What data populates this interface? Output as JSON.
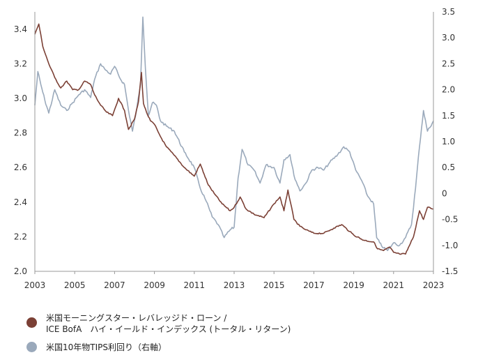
{
  "chart_data": {
    "type": "line",
    "title": "",
    "xlabel": "",
    "ylabel": "",
    "xlim": [
      2003,
      2023
    ],
    "ylim_left": [
      2.0,
      3.5
    ],
    "ylim_right": [
      -1.5,
      3.5
    ],
    "x_ticks": [
      "2003",
      "2005",
      "2007",
      "2009",
      "2011",
      "2013",
      "2015",
      "2017",
      "2019",
      "2021",
      "2023"
    ],
    "y_left_ticks": [
      "2.0",
      "2.2",
      "2.4",
      "2.6",
      "2.8",
      "3.0",
      "3.2",
      "3.4"
    ],
    "y_right_ticks": [
      "-1.5",
      "-1.0",
      "-0.5",
      "0",
      "0.5",
      "1.0",
      "1.5",
      "2.0",
      "2.5",
      "3.0",
      "3.5"
    ],
    "grid": false,
    "legend_position": "bottom-left",
    "series": [
      {
        "name": "米国モーニングスター・レバレッジド・ローン / ICE BofA　ハイ・イールド・インデックス (トータル・リターン)",
        "axis": "left",
        "color": "#7b4035",
        "x": [
          2003.0,
          2003.2,
          2003.4,
          2003.7,
          2004.0,
          2004.3,
          2004.6,
          2004.9,
          2005.2,
          2005.5,
          2005.8,
          2006.0,
          2006.3,
          2006.6,
          2006.9,
          2007.2,
          2007.5,
          2007.7,
          2008.0,
          2008.2,
          2008.35,
          2008.45,
          2008.6,
          2008.8,
          2009.0,
          2009.3,
          2009.6,
          2010.0,
          2010.5,
          2011.0,
          2011.3,
          2011.5,
          2011.7,
          2012.0,
          2012.4,
          2012.8,
          2013.0,
          2013.3,
          2013.6,
          2014.0,
          2014.5,
          2015.0,
          2015.3,
          2015.5,
          2015.7,
          2016.0,
          2016.3,
          2016.6,
          2017.0,
          2017.5,
          2018.0,
          2018.4,
          2018.8,
          2019.0,
          2019.5,
          2020.0,
          2020.2,
          2020.5,
          2020.8,
          2021.0,
          2021.3,
          2021.6,
          2021.8,
          2022.0,
          2022.3,
          2022.5,
          2022.7,
          2023.0
        ],
        "values": [
          3.37,
          3.43,
          3.3,
          3.2,
          3.12,
          3.06,
          3.1,
          3.05,
          3.05,
          3.1,
          3.08,
          3.02,
          2.96,
          2.92,
          2.9,
          3.0,
          2.93,
          2.82,
          2.88,
          2.98,
          3.15,
          2.97,
          2.92,
          2.87,
          2.85,
          2.78,
          2.72,
          2.67,
          2.6,
          2.55,
          2.62,
          2.56,
          2.5,
          2.45,
          2.39,
          2.35,
          2.37,
          2.43,
          2.36,
          2.33,
          2.31,
          2.39,
          2.43,
          2.35,
          2.47,
          2.3,
          2.26,
          2.24,
          2.22,
          2.22,
          2.25,
          2.27,
          2.23,
          2.21,
          2.18,
          2.17,
          2.13,
          2.12,
          2.14,
          2.11,
          2.1,
          2.1,
          2.15,
          2.2,
          2.35,
          2.3,
          2.37,
          2.36
        ]
      },
      {
        "name": "米国10年物TIPS利回り（右軸）",
        "axis": "right",
        "color": "#9aa9bb",
        "x": [
          2003.0,
          2003.15,
          2003.3,
          2003.5,
          2003.7,
          2004.0,
          2004.3,
          2004.6,
          2004.9,
          2005.2,
          2005.5,
          2005.8,
          2006.0,
          2006.3,
          2006.5,
          2006.8,
          2007.0,
          2007.3,
          2007.5,
          2007.7,
          2007.9,
          2008.1,
          2008.3,
          2008.42,
          2008.55,
          2008.7,
          2008.9,
          2009.1,
          2009.3,
          2009.6,
          2010.0,
          2010.5,
          2011.0,
          2011.3,
          2011.6,
          2011.9,
          2012.2,
          2012.5,
          2012.8,
          2013.0,
          2013.2,
          2013.4,
          2013.7,
          2014.0,
          2014.3,
          2014.6,
          2015.0,
          2015.3,
          2015.5,
          2015.8,
          2016.0,
          2016.3,
          2016.6,
          2016.9,
          2017.2,
          2017.5,
          2017.8,
          2018.2,
          2018.5,
          2018.8,
          2019.1,
          2019.4,
          2019.7,
          2020.0,
          2020.15,
          2020.3,
          2020.5,
          2020.7,
          2021.0,
          2021.3,
          2021.6,
          2021.9,
          2022.1,
          2022.3,
          2022.5,
          2022.7,
          2023.0
        ],
        "values": [
          1.7,
          2.35,
          2.1,
          1.8,
          1.55,
          2.0,
          1.7,
          1.6,
          1.75,
          1.9,
          2.0,
          1.85,
          2.2,
          2.5,
          2.4,
          2.3,
          2.45,
          2.2,
          2.1,
          1.6,
          1.2,
          1.6,
          2.1,
          3.4,
          2.4,
          1.5,
          1.75,
          1.7,
          1.4,
          1.3,
          1.2,
          0.8,
          0.5,
          0.1,
          -0.15,
          -0.45,
          -0.6,
          -0.85,
          -0.7,
          -0.65,
          0.3,
          0.85,
          0.55,
          0.45,
          0.2,
          0.55,
          0.5,
          0.2,
          0.65,
          0.75,
          0.35,
          0.05,
          0.2,
          0.45,
          0.5,
          0.45,
          0.6,
          0.75,
          0.9,
          0.8,
          0.45,
          0.25,
          -0.05,
          -0.2,
          -0.85,
          -0.95,
          -1.05,
          -1.1,
          -0.95,
          -1.0,
          -0.85,
          -0.6,
          0.1,
          0.9,
          1.6,
          1.2,
          1.4
        ]
      }
    ]
  }
}
